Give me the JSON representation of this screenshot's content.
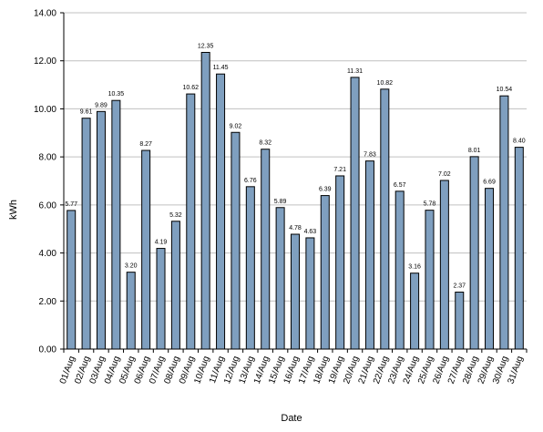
{
  "chart_data": {
    "type": "bar",
    "title": "",
    "xlabel": "Date",
    "ylabel": "kWh",
    "ylim": [
      0,
      14
    ],
    "yticks": [
      "0.00",
      "2.00",
      "4.00",
      "6.00",
      "8.00",
      "10.00",
      "12.00",
      "14.00"
    ],
    "grid": true,
    "legend": "none",
    "categories": [
      "01/Aug",
      "02/Aug",
      "03/Aug",
      "04/Aug",
      "05/Aug",
      "06/Aug",
      "07/Aug",
      "08/Aug",
      "09/Aug",
      "10/Aug",
      "11/Aug",
      "12/Aug",
      "13/Aug",
      "14/Aug",
      "15/Aug",
      "16/Aug",
      "17/Aug",
      "18/Aug",
      "19/Aug",
      "20/Aug",
      "21/Aug",
      "22/Aug",
      "23/Aug",
      "24/Aug",
      "25/Aug",
      "26/Aug",
      "27/Aug",
      "28/Aug",
      "29/Aug",
      "30/Aug",
      "31/Aug"
    ],
    "values": [
      5.77,
      9.61,
      9.89,
      10.35,
      3.2,
      8.27,
      4.19,
      5.32,
      10.62,
      12.35,
      11.45,
      9.02,
      6.76,
      8.32,
      5.89,
      4.78,
      4.63,
      6.39,
      7.21,
      11.31,
      7.83,
      10.82,
      6.57,
      3.16,
      5.78,
      7.02,
      2.37,
      8.01,
      6.69,
      10.54,
      8.4
    ],
    "value_labels": [
      "5.77",
      "9.61",
      "9.89",
      "10.35",
      "3.20",
      "8.27",
      "4.19",
      "5.32",
      "10.62",
      "12.35",
      "11.45",
      "9.02",
      "6.76",
      "8.32",
      "5.89",
      "4.78",
      "4.63",
      "6.39",
      "7.21",
      "11.31",
      "7.83",
      "10.82",
      "6.57",
      "3.16",
      "5.78",
      "7.02",
      "2.37",
      "8.01",
      "6.69",
      "10.54",
      "8.40"
    ],
    "colors": {
      "bar_fill": "#7f9fbf",
      "bar_stroke": "#000000",
      "grid": "#c0c0c0",
      "axis": "#000000"
    }
  }
}
